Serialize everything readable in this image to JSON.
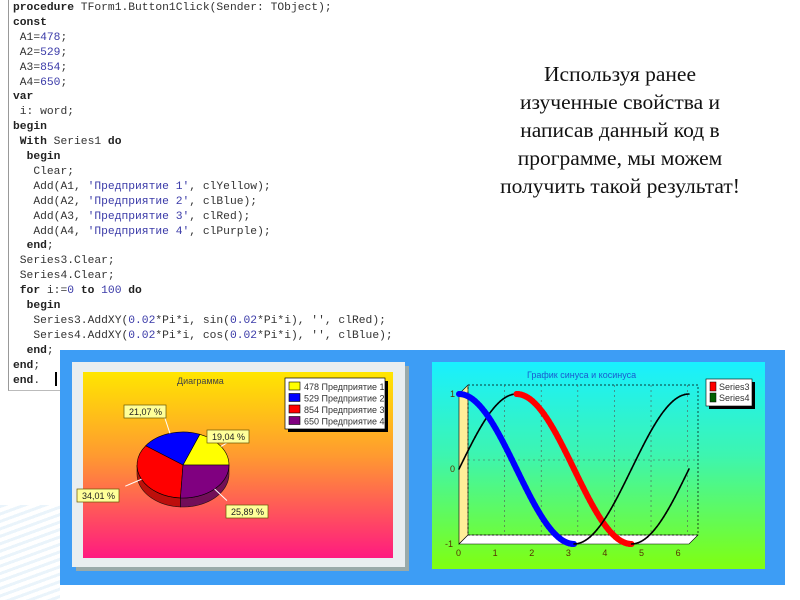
{
  "code_lines": [
    "<b>procedure</b> TForm1.Button1Click(Sender: TObject);",
    "<b>const</b>",
    " A1=<span class='n'>478</span>;",
    " A2=<span class='n'>529</span>;",
    " A3=<span class='n'>854</span>;",
    " A4=<span class='n'>650</span>;",
    "<b>var</b>",
    " i: word;",
    "<b>begin</b>",
    " <b>With</b> Series1 <b>do</b>",
    "  <b>begin</b>",
    "   Clear;",
    "   Add(A1, <span class='s'>'Предприятие 1'</span>, clYellow);",
    "   Add(A2, <span class='s'>'Предприятие 2'</span>, clBlue);",
    "   Add(A3, <span class='s'>'Предприятие 3'</span>, clRed);",
    "   Add(A4, <span class='s'>'Предприятие 4'</span>, clPurple);",
    "  <b>end</b>;",
    " Series3.Clear;",
    " Series4.Clear;",
    " <b>for</b> i:=<span class='n'>0</span> <b>to</b> <span class='n'>100</span> <b>do</b>",
    "  <b>begin</b>",
    "   Series3.AddXY(<span class='n'>0.02</span>*Pi*i, sin(<span class='n'>0.02</span>*Pi*i), '', clRed);",
    "   Series4.AddXY(<span class='n'>0.02</span>*Pi*i, cos(<span class='n'>0.02</span>*Pi*i), '', clBlue);",
    "  <b>end</b>;",
    "<b>end</b>;",
    "<b>end</b>."
  ],
  "caption": [
    "Используя ранее",
    "изученные свойства и",
    "написав данный код в",
    "программе, мы можем",
    "получить такой результат!"
  ],
  "chart_data": [
    {
      "type": "pie",
      "title": "Диаграмма",
      "categories": [
        "Предприятие 1",
        "Предприятие 2",
        "Предприятие 3",
        "Предприятие 4"
      ],
      "values": [
        478,
        529,
        854,
        650
      ],
      "legend": [
        "478 Предприятие 1",
        "529 Предприятие 2",
        "854 Предприятие 3",
        "650 Предприятие 4"
      ],
      "data_labels": [
        "19,04 %",
        "21,07 %",
        "34,01 %",
        "25,89 %"
      ],
      "colors": [
        "#ffff00",
        "#0000ff",
        "#ff0000",
        "#800080"
      ],
      "legend_position": "top-right"
    },
    {
      "type": "line",
      "title": "График синуса и косинуса",
      "series": [
        {
          "name": "Series3",
          "function": "sin(x)",
          "x_from": 0,
          "x_to": 6.2832,
          "points": 101,
          "color": "#ff0000"
        },
        {
          "name": "Series4",
          "function": "cos(x)",
          "x_from": 0,
          "x_to": 6.2832,
          "points": 101,
          "color": "#0000ff"
        }
      ],
      "legend_colors": [
        "#ff0000",
        "#006000"
      ],
      "xticks": [
        "0",
        "1",
        "2",
        "3",
        "4",
        "5",
        "6"
      ],
      "yticks": [
        "-1",
        "0",
        "1"
      ],
      "xlim": [
        0,
        6.2832
      ],
      "ylim": [
        -1,
        1
      ],
      "grid": true,
      "legend_position": "top-right"
    }
  ]
}
